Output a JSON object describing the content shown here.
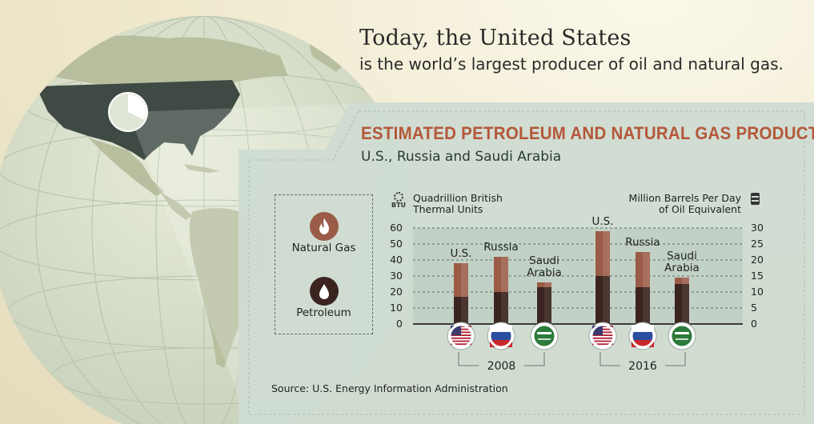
{
  "header": {
    "line1": "Today, the United States",
    "line2": "is the world’s largest producer of oil and natural gas."
  },
  "legend": {
    "natural_gas": "Natural Gas",
    "petroleum": "Petroleum"
  },
  "axes": {
    "left_title_line1": "Quadrillion British",
    "left_title_line2": "Thermal Units",
    "left_icon_text": "BTU",
    "right_title_line1": "Million Barrels Per Day",
    "right_title_line2": "of Oil Equivalent"
  },
  "source": "Source: U.S. Energy Information Administration",
  "colors": {
    "natural_gas": "#9a5c47",
    "petroleum": "#3b2420",
    "title": "#b4573a",
    "panel": "#cfdcd1"
  },
  "chart_data": {
    "type": "bar",
    "stacked": true,
    "title": "ESTIMATED PETROLEUM AND NATURAL GAS PRODUCTION",
    "subtitle": "U.S., Russia and Saudi Arabia",
    "groups": [
      "2008",
      "2016"
    ],
    "categories": [
      "U.S.",
      "Russia",
      "Saudi Arabia",
      "U.S.",
      "Russia",
      "Saudi Arabia"
    ],
    "category_lines": [
      [
        "U.S."
      ],
      [
        "Russia"
      ],
      [
        "Saudi",
        "Arabia"
      ],
      [
        "U.S."
      ],
      [
        "Russia"
      ],
      [
        "Saudi",
        "Arabia"
      ]
    ],
    "category_group": [
      "2008",
      "2008",
      "2008",
      "2016",
      "2016",
      "2016"
    ],
    "series": [
      {
        "name": "Petroleum",
        "values": [
          17,
          20,
          23,
          30,
          23,
          25
        ]
      },
      {
        "name": "Natural Gas",
        "values": [
          21,
          22,
          3,
          28,
          22,
          4
        ]
      }
    ],
    "ylabel": "Quadrillion British Thermal Units",
    "ylim": [
      0,
      60
    ],
    "yticks": [
      0,
      10,
      20,
      30,
      40,
      50,
      60
    ],
    "y2label": "Million Barrels Per Day of Oil Equivalent",
    "y2lim": [
      0,
      30
    ],
    "y2ticks": [
      0,
      5,
      10,
      15,
      20,
      25,
      30
    ],
    "flags": [
      "us-flag-icon",
      "russia-flag-icon",
      "saudi-flag-icon",
      "us-flag-icon",
      "russia-flag-icon",
      "saudi-flag-icon"
    ],
    "grid": true,
    "legend": "left"
  }
}
